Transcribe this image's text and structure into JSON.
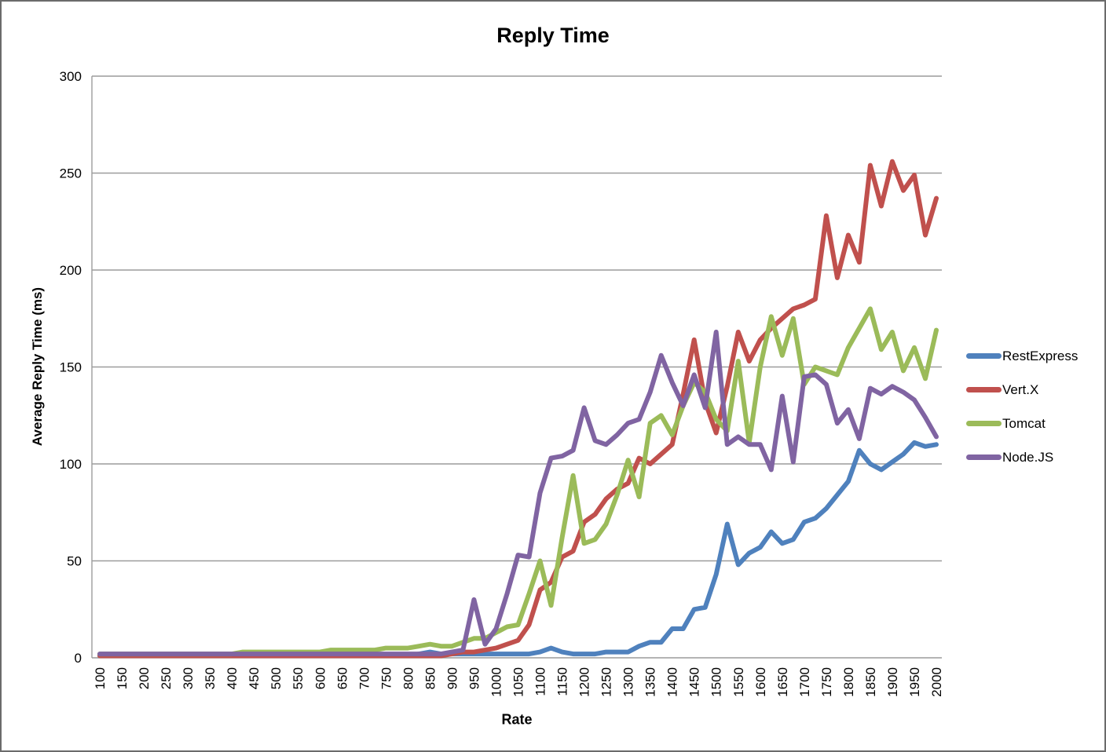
{
  "title": "Reply Time",
  "x_axis": {
    "title": "Rate"
  },
  "y_axis": {
    "title": "Average Reply Time (ms)"
  },
  "chart_data": {
    "type": "line",
    "title": "Reply Time",
    "xlabel": "Rate",
    "ylabel": "Average Reply Time (ms)",
    "xlim": [
      100,
      2000
    ],
    "ylim": [
      0,
      300
    ],
    "grid": "horizontal-only",
    "legend_position": "right",
    "gridline_color": "#9c9c9c",
    "x_tick_labels": [
      100,
      150,
      200,
      250,
      300,
      350,
      400,
      450,
      500,
      550,
      600,
      650,
      700,
      750,
      800,
      850,
      900,
      950,
      1000,
      1050,
      1100,
      1150,
      1200,
      1250,
      1300,
      1350,
      1400,
      1450,
      1500,
      1550,
      1600,
      1650,
      1700,
      1750,
      1800,
      1850,
      1900,
      1950,
      2000
    ],
    "y_tick_labels": [
      0,
      50,
      100,
      150,
      200,
      250,
      300
    ],
    "x": [
      100,
      125,
      150,
      175,
      200,
      225,
      250,
      275,
      300,
      325,
      350,
      375,
      400,
      425,
      450,
      475,
      500,
      525,
      550,
      575,
      600,
      625,
      650,
      675,
      700,
      725,
      750,
      775,
      800,
      825,
      850,
      875,
      900,
      925,
      950,
      975,
      1000,
      1025,
      1050,
      1075,
      1100,
      1125,
      1150,
      1175,
      1200,
      1225,
      1250,
      1275,
      1300,
      1325,
      1350,
      1375,
      1400,
      1425,
      1450,
      1475,
      1500,
      1525,
      1550,
      1575,
      1600,
      1625,
      1650,
      1675,
      1700,
      1725,
      1750,
      1775,
      1800,
      1825,
      1850,
      1875,
      1900,
      1925,
      1950,
      1975,
      2000
    ],
    "series": [
      {
        "name": "RestExpress",
        "color": "#4F81BD",
        "values": [
          1,
          1,
          1,
          1,
          1,
          1,
          1,
          1,
          1,
          1,
          1,
          1,
          1,
          1,
          1,
          1,
          1,
          1,
          1,
          1,
          1,
          1,
          1,
          1,
          1,
          1,
          1,
          1,
          1,
          2,
          3,
          2,
          2,
          2,
          2,
          2,
          2,
          2,
          2,
          2,
          3,
          5,
          3,
          2,
          2,
          2,
          3,
          3,
          3,
          6,
          8,
          8,
          15,
          15,
          25,
          26,
          43,
          69,
          48,
          54,
          57,
          65,
          59,
          61,
          70,
          72,
          77,
          84,
          91,
          107,
          100,
          97,
          101,
          105,
          111,
          109,
          110
        ]
      },
      {
        "name": "Vert.X",
        "color": "#C0504D",
        "values": [
          1,
          1,
          1,
          1,
          1,
          1,
          1,
          1,
          1,
          1,
          1,
          1,
          1,
          1,
          1,
          1,
          1,
          1,
          1,
          1,
          1,
          1,
          1,
          1,
          1,
          1,
          1,
          1,
          1,
          1,
          1,
          1,
          2,
          3,
          3,
          4,
          5,
          7,
          9,
          17,
          35,
          39,
          52,
          55,
          70,
          74,
          82,
          87,
          90,
          103,
          100,
          105,
          110,
          136,
          164,
          132,
          116,
          140,
          168,
          153,
          164,
          170,
          175,
          180,
          182,
          185,
          228,
          196,
          218,
          204,
          254,
          233,
          256,
          241,
          249,
          218,
          237
        ]
      },
      {
        "name": "Tomcat",
        "color": "#9BBB59",
        "values": [
          2,
          2,
          2,
          2,
          2,
          2,
          2,
          2,
          2,
          2,
          2,
          2,
          2,
          3,
          3,
          3,
          3,
          3,
          3,
          3,
          3,
          4,
          4,
          4,
          4,
          4,
          5,
          5,
          5,
          6,
          7,
          6,
          6,
          8,
          10,
          10,
          13,
          16,
          17,
          33,
          50,
          27,
          62,
          94,
          59,
          61,
          69,
          84,
          102,
          83,
          121,
          125,
          115,
          130,
          142,
          137,
          123,
          117,
          153,
          111,
          150,
          176,
          156,
          175,
          141,
          150,
          148,
          146,
          160,
          170,
          180,
          159,
          168,
          148,
          160,
          144,
          169
        ]
      },
      {
        "name": "Node.JS",
        "color": "#8064A2",
        "values": [
          2,
          2,
          2,
          2,
          2,
          2,
          2,
          2,
          2,
          2,
          2,
          2,
          2,
          2,
          2,
          2,
          2,
          2,
          2,
          2,
          2,
          2,
          2,
          2,
          2,
          2,
          2,
          2,
          2,
          2,
          2,
          2,
          3,
          4,
          30,
          7,
          15,
          33,
          53,
          52,
          85,
          103,
          104,
          107,
          129,
          112,
          110,
          115,
          121,
          123,
          137,
          156,
          142,
          130,
          146,
          129,
          168,
          110,
          114,
          110,
          110,
          97,
          135,
          101,
          145,
          146,
          141,
          121,
          128,
          113,
          139,
          136,
          140,
          137,
          133,
          124,
          114
        ]
      }
    ]
  }
}
